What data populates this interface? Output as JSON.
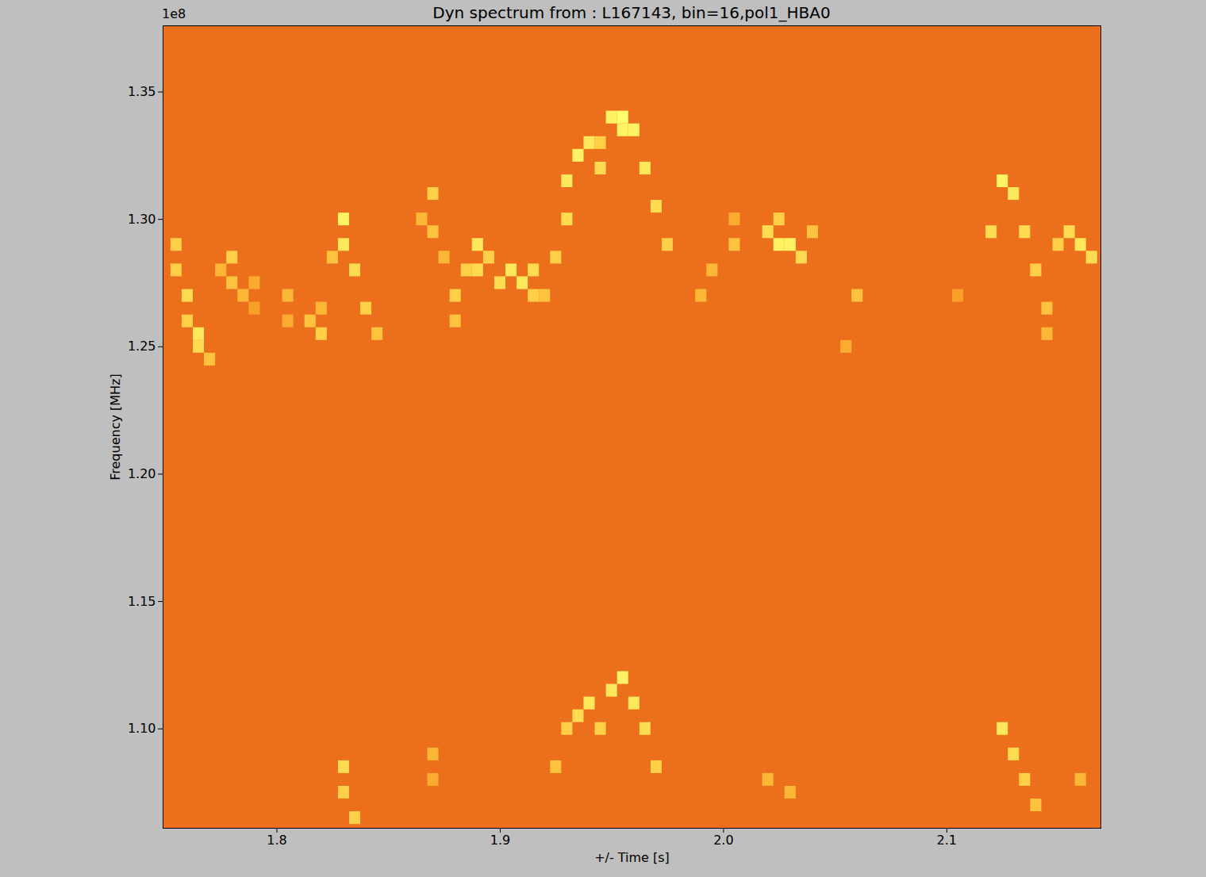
{
  "chart_data": {
    "type": "heatmap",
    "title": "Dyn spectrum from : L167143, bin=16,pol1_HBA0",
    "x_label": "+/- Time [s]",
    "y_label": "Frequency [MHz]",
    "y_multiplier": "1e8",
    "xlim": [
      1.749,
      2.169
    ],
    "xticks": [
      1.8,
      1.9,
      {
        "value": 2,
        "label": "2.0"
      },
      2.1
    ],
    "ylim": [
      1.061,
      1.376
    ],
    "yticks": [
      {
        "value": 1.1,
        "label": "1.10"
      },
      1.15,
      {
        "value": 1.2,
        "label": "1.20"
      },
      1.25,
      {
        "value": 1.3,
        "label": "1.30"
      },
      1.35
    ],
    "zlim": [
      0,
      1
    ],
    "background": 0.35,
    "cell_width": 0.005,
    "cell_height": 0.005,
    "cells": [
      [
        1.755,
        1.29,
        0.8
      ],
      [
        1.755,
        1.28,
        0.8
      ],
      [
        1.76,
        1.27,
        0.85
      ],
      [
        1.76,
        1.26,
        0.8
      ],
      [
        1.765,
        1.255,
        0.9
      ],
      [
        1.765,
        1.25,
        0.85
      ],
      [
        1.77,
        1.245,
        0.75
      ],
      [
        1.775,
        1.28,
        0.7
      ],
      [
        1.78,
        1.285,
        0.8
      ],
      [
        1.78,
        1.275,
        0.75
      ],
      [
        1.785,
        1.27,
        0.7
      ],
      [
        1.79,
        1.275,
        0.65
      ],
      [
        1.79,
        1.265,
        0.6
      ],
      [
        1.805,
        1.27,
        0.7
      ],
      [
        1.805,
        1.26,
        0.65
      ],
      [
        1.815,
        1.26,
        0.75
      ],
      [
        1.82,
        1.255,
        0.8
      ],
      [
        1.82,
        1.265,
        0.7
      ],
      [
        1.825,
        1.285,
        0.75
      ],
      [
        1.83,
        1.3,
        0.95
      ],
      [
        1.83,
        1.29,
        0.9
      ],
      [
        1.835,
        1.28,
        0.85
      ],
      [
        1.84,
        1.265,
        0.8
      ],
      [
        1.845,
        1.255,
        0.75
      ],
      [
        1.865,
        1.3,
        0.7
      ],
      [
        1.87,
        1.31,
        0.8
      ],
      [
        1.87,
        1.295,
        0.75
      ],
      [
        1.875,
        1.285,
        0.7
      ],
      [
        1.88,
        1.27,
        0.8
      ],
      [
        1.88,
        1.26,
        0.75
      ],
      [
        1.885,
        1.28,
        0.8
      ],
      [
        1.89,
        1.29,
        0.9
      ],
      [
        1.89,
        1.28,
        0.85
      ],
      [
        1.895,
        1.285,
        0.8
      ],
      [
        1.9,
        1.275,
        0.85
      ],
      [
        1.905,
        1.28,
        0.9
      ],
      [
        1.91,
        1.275,
        0.9
      ],
      [
        1.915,
        1.28,
        0.85
      ],
      [
        1.915,
        1.27,
        0.8
      ],
      [
        1.92,
        1.27,
        0.75
      ],
      [
        1.925,
        1.285,
        0.8
      ],
      [
        1.93,
        1.3,
        0.85
      ],
      [
        1.93,
        1.315,
        0.9
      ],
      [
        1.935,
        1.325,
        0.95
      ],
      [
        1.94,
        1.33,
        0.9
      ],
      [
        1.945,
        1.32,
        0.85
      ],
      [
        1.945,
        1.33,
        0.8
      ],
      [
        1.95,
        1.34,
        0.95
      ],
      [
        1.955,
        1.34,
        1.0
      ],
      [
        1.955,
        1.335,
        0.95
      ],
      [
        1.96,
        1.335,
        0.95
      ],
      [
        1.965,
        1.32,
        0.9
      ],
      [
        1.97,
        1.305,
        0.85
      ],
      [
        1.975,
        1.29,
        0.8
      ],
      [
        1.99,
        1.27,
        0.7
      ],
      [
        1.995,
        1.28,
        0.7
      ],
      [
        2.005,
        1.29,
        0.75
      ],
      [
        2.005,
        1.3,
        0.65
      ],
      [
        2.02,
        1.295,
        0.85
      ],
      [
        2.025,
        1.29,
        0.95
      ],
      [
        2.025,
        1.3,
        0.8
      ],
      [
        2.03,
        1.29,
        0.95
      ],
      [
        2.035,
        1.285,
        0.85
      ],
      [
        2.04,
        1.295,
        0.75
      ],
      [
        2.055,
        1.25,
        0.65
      ],
      [
        2.06,
        1.27,
        0.75
      ],
      [
        2.105,
        1.27,
        0.6
      ],
      [
        2.12,
        1.295,
        0.85
      ],
      [
        2.125,
        1.315,
        0.95
      ],
      [
        2.13,
        1.31,
        0.9
      ],
      [
        2.135,
        1.295,
        0.85
      ],
      [
        2.14,
        1.28,
        0.8
      ],
      [
        2.145,
        1.265,
        0.75
      ],
      [
        2.145,
        1.255,
        0.7
      ],
      [
        2.15,
        1.29,
        0.8
      ],
      [
        2.155,
        1.295,
        0.85
      ],
      [
        2.16,
        1.29,
        0.9
      ],
      [
        2.165,
        1.285,
        0.85
      ],
      [
        1.83,
        1.085,
        0.85
      ],
      [
        1.83,
        1.075,
        0.8
      ],
      [
        1.835,
        1.065,
        0.8
      ],
      [
        1.87,
        1.09,
        0.7
      ],
      [
        1.87,
        1.08,
        0.65
      ],
      [
        1.925,
        1.085,
        0.75
      ],
      [
        1.93,
        1.1,
        0.8
      ],
      [
        1.935,
        1.105,
        0.85
      ],
      [
        1.94,
        1.11,
        0.9
      ],
      [
        1.945,
        1.1,
        0.8
      ],
      [
        1.95,
        1.115,
        0.9
      ],
      [
        1.955,
        1.12,
        0.95
      ],
      [
        1.96,
        1.11,
        0.9
      ],
      [
        1.965,
        1.1,
        0.85
      ],
      [
        1.97,
        1.085,
        0.8
      ],
      [
        2.02,
        1.08,
        0.7
      ],
      [
        2.03,
        1.075,
        0.7
      ],
      [
        2.125,
        1.1,
        0.9
      ],
      [
        2.13,
        1.09,
        0.85
      ],
      [
        2.135,
        1.08,
        0.8
      ],
      [
        2.14,
        1.07,
        0.75
      ],
      [
        2.16,
        1.08,
        0.7
      ]
    ]
  }
}
